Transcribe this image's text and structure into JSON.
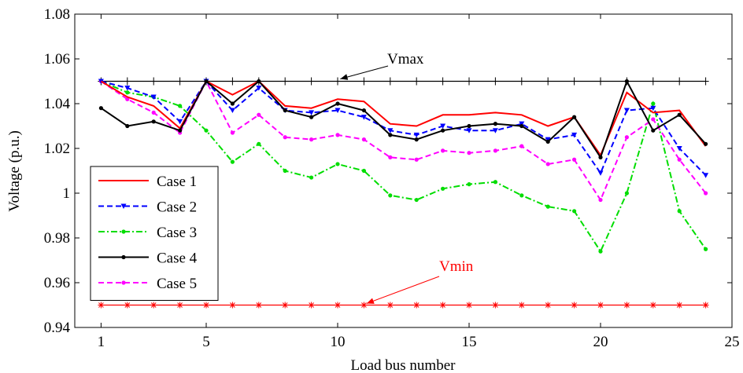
{
  "chart_data": {
    "type": "line",
    "title": "",
    "xlabel": "Load bus number",
    "ylabel": "Voltage (p.u.)",
    "xlim": [
      0,
      25
    ],
    "ylim": [
      0.94,
      1.08
    ],
    "xticks": [
      1,
      5,
      10,
      15,
      20,
      25
    ],
    "yticks": [
      0.94,
      0.96,
      0.98,
      1.0,
      1.02,
      1.04,
      1.06,
      1.08
    ],
    "xtick_labels": [
      "1",
      "5",
      "10",
      "15",
      "20",
      "25"
    ],
    "ytick_labels": [
      "0.94",
      "0.96",
      "0.98",
      "1",
      "1.02",
      "1.04",
      "1.06",
      "1.08"
    ],
    "grid": false,
    "legend_position": "bottom-left",
    "x": [
      1,
      2,
      3,
      4,
      5,
      6,
      7,
      8,
      9,
      10,
      11,
      12,
      13,
      14,
      15,
      16,
      17,
      18,
      19,
      20,
      21,
      22,
      23,
      24
    ],
    "series": [
      {
        "name": "Case 1",
        "color": "#ff0000",
        "dash": "solid",
        "marker": "none",
        "values": [
          1.05,
          1.043,
          1.039,
          1.029,
          1.05,
          1.044,
          1.05,
          1.039,
          1.038,
          1.042,
          1.041,
          1.031,
          1.03,
          1.035,
          1.035,
          1.036,
          1.035,
          1.03,
          1.034,
          1.017,
          1.045,
          1.036,
          1.037,
          1.021
        ]
      },
      {
        "name": "Case 2",
        "color": "#0000ff",
        "dash": "dashed",
        "marker": "triangle-down",
        "values": [
          1.05,
          1.047,
          1.043,
          1.032,
          1.05,
          1.037,
          1.047,
          1.037,
          1.036,
          1.037,
          1.034,
          1.028,
          1.026,
          1.03,
          1.028,
          1.028,
          1.031,
          1.024,
          1.026,
          1.009,
          1.037,
          1.038,
          1.02,
          1.008
        ]
      },
      {
        "name": "Case 3",
        "color": "#00dd00",
        "dash": "dashdot",
        "marker": "dot",
        "values": [
          1.05,
          1.045,
          1.043,
          1.039,
          1.028,
          1.014,
          1.022,
          1.01,
          1.007,
          1.013,
          1.01,
          0.999,
          0.997,
          1.002,
          1.004,
          1.005,
          0.999,
          0.994,
          0.992,
          0.974,
          1.0,
          1.04,
          0.992,
          0.975
        ]
      },
      {
        "name": "Case 4",
        "color": "#000000",
        "dash": "solid",
        "marker": "dot",
        "values": [
          1.038,
          1.03,
          1.032,
          1.028,
          1.05,
          1.04,
          1.05,
          1.037,
          1.034,
          1.04,
          1.037,
          1.026,
          1.024,
          1.028,
          1.03,
          1.031,
          1.03,
          1.023,
          1.034,
          1.016,
          1.05,
          1.028,
          1.035,
          1.022
        ]
      },
      {
        "name": "Case 5",
        "color": "#ff00ff",
        "dash": "dashed",
        "marker": "dot",
        "values": [
          1.05,
          1.042,
          1.036,
          1.027,
          1.05,
          1.027,
          1.035,
          1.025,
          1.024,
          1.026,
          1.024,
          1.016,
          1.015,
          1.019,
          1.018,
          1.019,
          1.021,
          1.013,
          1.015,
          0.997,
          1.025,
          1.033,
          1.015,
          1.0
        ]
      }
    ],
    "reference_lines": [
      {
        "label": "Vmax",
        "value": 1.05,
        "color": "#000000",
        "marker": "plus"
      },
      {
        "label": "Vmin",
        "value": 0.95,
        "color": "#ff0000",
        "marker": "asterisk"
      }
    ]
  }
}
